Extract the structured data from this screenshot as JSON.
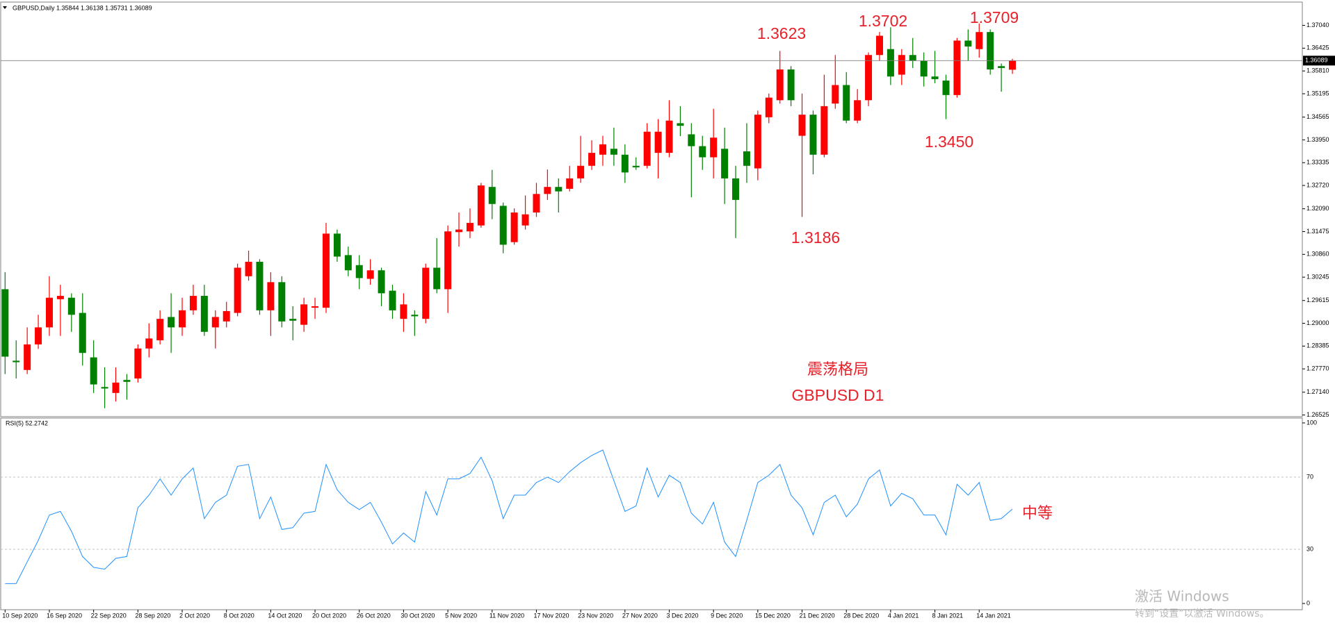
{
  "chart_data": [
    {
      "type": "candlestick",
      "title": "GBPUSD,Daily  1.35844 1.36138 1.35731 1.36089",
      "up_color": "#ff0000",
      "down_color": "#008000",
      "categories": [
        "10 Sep 2020",
        null,
        null,
        null,
        "16 Sep 2020",
        null,
        null,
        null,
        "22 Sep 2020",
        null,
        null,
        null,
        "28 Sep 2020",
        null,
        null,
        null,
        "2 Oct 2020",
        null,
        null,
        null,
        "8 Oct 2020",
        null,
        null,
        null,
        "14 Oct 2020",
        null,
        null,
        null,
        "20 Oct 2020",
        null,
        null,
        null,
        "26 Oct 2020",
        null,
        null,
        null,
        "30 Oct 2020",
        null,
        null,
        null,
        "5 Nov 2020",
        null,
        null,
        null,
        "11 Nov 2020",
        null,
        null,
        null,
        "17 Nov 2020",
        null,
        null,
        null,
        "23 Nov 2020",
        null,
        null,
        null,
        "27 Nov 2020",
        null,
        null,
        null,
        "3 Dec 2020",
        null,
        null,
        null,
        "9 Dec 2020",
        null,
        null,
        null,
        "15 Dec 2020",
        null,
        null,
        null,
        "21 Dec 2020",
        null,
        null,
        null,
        "28 Dec 2020",
        null,
        null,
        null,
        "4 Jan 2021",
        null,
        null,
        null,
        "8 Jan 2021",
        null,
        null,
        null,
        "14 Jan 2021",
        null,
        null,
        null
      ],
      "open": [
        1.2992,
        1.2799,
        1.2774,
        1.2843,
        1.2889,
        1.2965,
        1.2969,
        1.2928,
        1.2808,
        1.2728,
        1.2712,
        1.2747,
        1.2751,
        1.2832,
        1.2854,
        1.2917,
        1.2889,
        1.2935,
        1.2974,
        1.2889,
        1.2905,
        1.2928,
        1.3027,
        1.3066,
        1.2935,
        1.3011,
        1.2912,
        1.2896,
        1.2942,
        1.2942,
        1.3142,
        1.3084,
        1.3057,
        1.302,
        1.3043,
        1.2988,
        1.2912,
        1.2923,
        1.2912,
        1.305,
        1.2992,
        1.3146,
        1.3148,
        1.3164,
        1.3268,
        1.3217,
        1.3119,
        1.3164,
        1.3199,
        1.3249,
        1.3268,
        1.3263,
        1.3291,
        1.3325,
        1.3355,
        1.3371,
        1.3355,
        1.3325,
        1.3325,
        1.336,
        1.336,
        1.344,
        1.341,
        1.3378,
        1.3348,
        1.3371,
        1.3291,
        1.3364,
        1.3318,
        1.3456,
        1.3502,
        1.3585,
        1.3406,
        1.3463,
        1.3355,
        1.3493,
        1.3543,
        1.3447,
        1.3502,
        1.3624,
        1.364,
        1.3571,
        1.3624,
        1.3608,
        1.3566,
        1.3555,
        1.3516,
        1.3663,
        1.364,
        1.3686,
        1.3594,
        1.35844
      ],
      "high": [
        1.3038,
        1.2854,
        1.2889,
        1.2923,
        1.3027,
        1.3004,
        1.2981,
        1.2981,
        1.2854,
        1.2781,
        1.2781,
        1.2763,
        1.2843,
        1.29,
        1.2935,
        1.2981,
        1.2969,
        1.3004,
        1.3004,
        1.2935,
        1.2958,
        1.3061,
        1.3096,
        1.3073,
        1.3038,
        1.3027,
        1.2946,
        1.2969,
        1.2969,
        1.3171,
        1.3153,
        1.3107,
        1.3084,
        1.3073,
        1.305,
        1.3004,
        1.2981,
        1.2935,
        1.3061,
        1.313,
        1.3164,
        1.3199,
        1.321,
        1.3279,
        1.3314,
        1.3226,
        1.321,
        1.3245,
        1.3279,
        1.3315,
        1.3291,
        1.3325,
        1.3406,
        1.3394,
        1.3406,
        1.3428,
        1.3383,
        1.3348,
        1.344,
        1.3451,
        1.3502,
        1.3486,
        1.344,
        1.3406,
        1.3479,
        1.3428,
        1.3325,
        1.344,
        1.3474,
        1.352,
        1.3635,
        1.3594,
        1.352,
        1.3474,
        1.3571,
        1.3624,
        1.3578,
        1.3532,
        1.3631,
        1.3686,
        1.3699,
        1.364,
        1.367,
        1.3631,
        1.3635,
        1.3571,
        1.367,
        1.3693,
        1.3709,
        1.3693,
        1.3601,
        1.36138
      ],
      "low": [
        1.2763,
        1.2751,
        1.2763,
        1.2831,
        1.2866,
        1.2866,
        1.2877,
        1.2786,
        1.2712,
        1.2671,
        1.2689,
        1.2694,
        1.274,
        1.2808,
        1.2843,
        1.282,
        1.2866,
        1.2923,
        1.2866,
        1.2832,
        1.2889,
        1.2919,
        1.3015,
        1.2923,
        1.2866,
        1.2889,
        1.2854,
        1.2877,
        1.2912,
        1.2928,
        1.3066,
        1.3027,
        1.2992,
        1.3004,
        1.2946,
        1.2912,
        1.2877,
        1.2866,
        1.29,
        1.2981,
        1.2928,
        1.3107,
        1.313,
        1.3158,
        1.3181,
        1.3089,
        1.3112,
        1.3153,
        1.3187,
        1.3233,
        1.3199,
        1.3256,
        1.3279,
        1.3314,
        1.3325,
        1.3325,
        1.3279,
        1.3314,
        1.3318,
        1.3291,
        1.3348,
        1.3405,
        1.324,
        1.3314,
        1.3291,
        1.3222,
        1.313,
        1.3279,
        1.3286,
        1.344,
        1.3493,
        1.3486,
        1.3187,
        1.3302,
        1.3348,
        1.3479,
        1.344,
        1.344,
        1.3486,
        1.3608,
        1.3543,
        1.3543,
        1.3589,
        1.3539,
        1.3548,
        1.3451,
        1.3509,
        1.3608,
        1.3617,
        1.3571,
        1.3525,
        1.35731
      ],
      "close": [
        1.281,
        1.2795,
        1.2843,
        1.2889,
        1.2969,
        1.2974,
        1.2923,
        1.282,
        1.2735,
        1.2724,
        1.274,
        1.2742,
        1.2832,
        1.2859,
        1.2912,
        1.2889,
        1.2935,
        1.2974,
        1.2877,
        1.2917,
        1.2933,
        1.305,
        1.3066,
        1.2935,
        1.3011,
        1.2905,
        1.2907,
        1.2951,
        1.2946,
        1.3142,
        1.308,
        1.3043,
        1.3022,
        1.3043,
        1.2981,
        1.2935,
        1.2951,
        1.2919,
        1.305,
        1.2992,
        1.3148,
        1.3153,
        1.3171,
        1.3272,
        1.3222,
        1.3112,
        1.3199,
        1.3194,
        1.3249,
        1.3268,
        1.3256,
        1.3291,
        1.3325,
        1.336,
        1.3383,
        1.3355,
        1.3307,
        1.3321,
        1.3417,
        1.3417,
        1.3447,
        1.3433,
        1.3378,
        1.3348,
        1.3401,
        1.3291,
        1.3233,
        1.3325,
        1.3463,
        1.3509,
        1.3585,
        1.3502,
        1.3463,
        1.3355,
        1.3486,
        1.3543,
        1.3447,
        1.3502,
        1.3624,
        1.3676,
        1.3566,
        1.3624,
        1.3608,
        1.3566,
        1.3559,
        1.3516,
        1.3663,
        1.3647,
        1.3686,
        1.3585,
        1.3589,
        1.36089
      ],
      "ylim": [
        1.2648,
        1.3765
      ],
      "yticks": [
        {
          "value": 1.3704,
          "label": "1.37040"
        },
        1.36425,
        {
          "value": 1.3581,
          "label": "1.35810"
        },
        1.35195,
        1.34565,
        {
          "value": 1.3395,
          "label": "1.33950"
        },
        1.33335,
        {
          "value": 1.3272,
          "label": "1.32720"
        },
        {
          "value": 1.3209,
          "label": "1.32090"
        },
        1.31475,
        {
          "value": 1.3086,
          "label": "1.30860"
        },
        1.30245,
        1.29615,
        {
          "value": 1.29,
          "label": "1.29000"
        },
        1.28385,
        {
          "value": 1.2777,
          "label": "1.27770"
        },
        {
          "value": 1.2714,
          "label": "1.27140"
        },
        1.26525
      ],
      "annotations": [
        "1.3623",
        "1.3702",
        "1.3709",
        "1.3186",
        "1.3450",
        "震荡格局",
        "GBPUSD D1"
      ]
    },
    {
      "type": "line",
      "title": "RSI(5) 52.2742",
      "color": "#1e90ff",
      "values": [
        11,
        11,
        23,
        35,
        49,
        51,
        40,
        26,
        20,
        19,
        25,
        26,
        53,
        60,
        69,
        60,
        69,
        75,
        47,
        56,
        60,
        76,
        77,
        47,
        59,
        41,
        42,
        50,
        51,
        77,
        63,
        56,
        52,
        56,
        45,
        33,
        39,
        34,
        62,
        49,
        69,
        69,
        72,
        81,
        68,
        47,
        60,
        60,
        67,
        70,
        67,
        73,
        78,
        82,
        85,
        68,
        51,
        54,
        75,
        59,
        71,
        67,
        50,
        44,
        56,
        34,
        26,
        46,
        67,
        71,
        77,
        60,
        53,
        38,
        56,
        60,
        48,
        55,
        69,
        74,
        54,
        61,
        58,
        49,
        49,
        38,
        66,
        60,
        67,
        46,
        47,
        52.2742
      ],
      "ylim": [
        0,
        100
      ],
      "yticks": [
        100,
        70,
        30,
        0
      ],
      "annotations": [
        "中等"
      ]
    }
  ],
  "watermark": {
    "title": "激活 Windows",
    "subtitle": "转到“设置”以激活 Windows。"
  }
}
